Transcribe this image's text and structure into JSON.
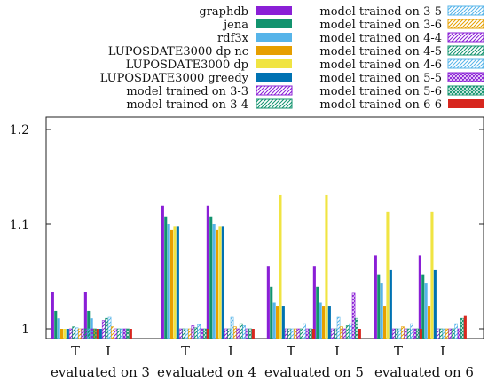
{
  "chart_data": {
    "type": "bar",
    "title": "",
    "xlabel": "",
    "ylabel": "",
    "ylim": [
      0.98,
      1.22
    ],
    "y_ticks": [
      1,
      1.1,
      1.2
    ],
    "y_tick_labels": [
      "1",
      "1.1",
      "1.2"
    ],
    "grid": false,
    "legend_position": "top, outside plot, two columns",
    "groups": [
      {
        "label": "evaluated on 3",
        "subcategories": [
          "T",
          "I"
        ]
      },
      {
        "label": "evaluated on 4",
        "subcategories": [
          "T",
          "I"
        ]
      },
      {
        "label": "evaluated on 5",
        "subcategories": [
          "T",
          "I"
        ]
      },
      {
        "label": "evaluated on 6",
        "subcategories": [
          "T",
          "I"
        ]
      }
    ],
    "categories": [
      "T",
      "I",
      "T",
      "I",
      "T",
      "I",
      "T",
      "I"
    ],
    "series": [
      {
        "name": "graphdb",
        "color": "#8a1fd6",
        "pattern": "solid",
        "values": [
          1.035,
          1.035,
          1.118,
          1.118,
          1.06,
          1.06,
          1.07,
          1.07
        ]
      },
      {
        "name": "jena",
        "color": "#12936e",
        "pattern": "solid",
        "values": [
          1.017,
          1.017,
          1.107,
          1.107,
          1.04,
          1.04,
          1.052,
          1.052
        ]
      },
      {
        "name": "rdf3x",
        "color": "#56b4e9",
        "pattern": "solid",
        "values": [
          1.01,
          1.01,
          1.1,
          1.1,
          1.025,
          1.025,
          1.044,
          1.044
        ]
      },
      {
        "name": "LUPOSDATE3000 dp nc",
        "color": "#e69f00",
        "pattern": "solid",
        "values": [
          1.0,
          1.0,
          1.095,
          1.095,
          1.022,
          1.022,
          1.022,
          1.022
        ]
      },
      {
        "name": "LUPOSDATE3000 dp",
        "color": "#f0e442",
        "pattern": "solid",
        "values": [
          1.0,
          1.0,
          1.098,
          1.098,
          1.128,
          1.128,
          1.112,
          1.112
        ]
      },
      {
        "name": "LUPOSDATE3000 greedy",
        "color": "#0072b2",
        "pattern": "solid",
        "values": [
          1.0,
          1.0,
          1.098,
          1.098,
          1.022,
          1.022,
          1.056,
          1.056
        ]
      },
      {
        "name": "model trained on 3-3",
        "color": "#8a1fd6",
        "pattern": "hatch",
        "values": [
          1.0,
          1.008,
          1.0,
          1.0,
          1.0,
          1.0,
          1.0,
          1.0
        ]
      },
      {
        "name": "model trained on 3-4",
        "color": "#12936e",
        "pattern": "hatch",
        "values": [
          1.002,
          1.01,
          1.0,
          1.0,
          1.0,
          1.0,
          1.0,
          1.0
        ]
      },
      {
        "name": "model trained on 3-5",
        "color": "#56b4e9",
        "pattern": "hatch",
        "values": [
          1.001,
          1.011,
          1.0,
          1.011,
          1.0,
          1.011,
          1.0,
          1.0
        ]
      },
      {
        "name": "model trained on 3-6",
        "color": "#e69f00",
        "pattern": "hatch",
        "values": [
          1.0,
          1.002,
          1.0,
          1.002,
          1.0,
          1.002,
          1.002,
          1.0
        ]
      },
      {
        "name": "model trained on 4-4",
        "color": "#8a1fd6",
        "pattern": "hatch",
        "values": [
          1.0,
          1.0,
          1.003,
          1.0,
          1.0,
          1.0,
          1.0,
          1.0
        ]
      },
      {
        "name": "model trained on 4-5",
        "color": "#12936e",
        "pattern": "hatch",
        "values": [
          1.0,
          1.0,
          1.001,
          1.005,
          1.0,
          1.003,
          1.0,
          1.0
        ]
      },
      {
        "name": "model trained on 4-6",
        "color": "#56b4e9",
        "pattern": "hatch",
        "values": [
          1.0,
          1.0,
          1.004,
          1.003,
          1.005,
          1.005,
          1.005,
          1.005
        ]
      },
      {
        "name": "model trained on 5-5",
        "color": "#8a1fd6",
        "pattern": "checker",
        "values": [
          1.0,
          1.0,
          1.0,
          1.0,
          1.0,
          1.034,
          1.0,
          1.0
        ]
      },
      {
        "name": "model trained on 5-6",
        "color": "#12936e",
        "pattern": "checker",
        "values": [
          1.0,
          1.0,
          1.0,
          1.0,
          1.0,
          1.01,
          1.0,
          1.01
        ]
      },
      {
        "name": "model trained on 6-6",
        "color": "#d7261e",
        "pattern": "solid",
        "values": [
          1.0,
          1.0,
          1.0,
          1.0,
          1.0,
          1.0,
          1.0,
          1.013
        ]
      }
    ]
  }
}
